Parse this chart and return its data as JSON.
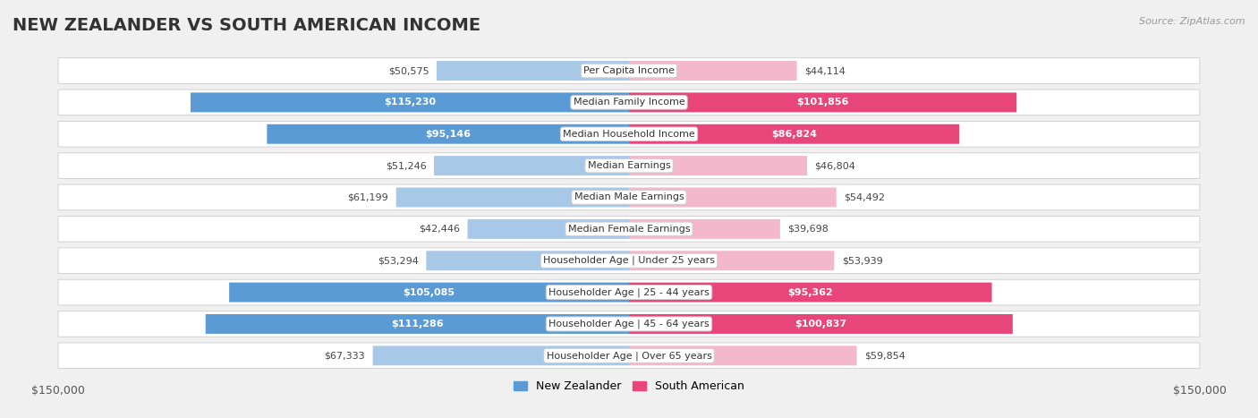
{
  "title": "NEW ZEALANDER VS SOUTH AMERICAN INCOME",
  "source": "Source: ZipAtlas.com",
  "max_val": 150000,
  "categories": [
    "Per Capita Income",
    "Median Family Income",
    "Median Household Income",
    "Median Earnings",
    "Median Male Earnings",
    "Median Female Earnings",
    "Householder Age | Under 25 years",
    "Householder Age | 25 - 44 years",
    "Householder Age | 45 - 64 years",
    "Householder Age | Over 65 years"
  ],
  "nz_values": [
    50575,
    115230,
    95146,
    51246,
    61199,
    42446,
    53294,
    105085,
    111286,
    67333
  ],
  "sa_values": [
    44114,
    101856,
    86824,
    46804,
    54492,
    39698,
    53939,
    95362,
    100837,
    59854
  ],
  "nz_labels": [
    "$50,575",
    "$115,230",
    "$95,146",
    "$51,246",
    "$61,199",
    "$42,446",
    "$53,294",
    "$105,085",
    "$111,286",
    "$67,333"
  ],
  "sa_labels": [
    "$44,114",
    "$101,856",
    "$86,824",
    "$46,804",
    "$54,492",
    "$39,698",
    "$53,939",
    "$95,362",
    "$100,837",
    "$59,854"
  ],
  "nz_color_light": "#a8c8e8",
  "nz_color_dark": "#5b9bd5",
  "sa_color_light": "#f4b8cc",
  "sa_color_dark": "#e8457a",
  "nz_text_threshold": 75000,
  "sa_text_threshold": 75000,
  "bg_color": "#f0f0f0",
  "row_bg": "#ffffff",
  "title_fontsize": 14,
  "label_fontsize": 8,
  "value_fontsize": 8,
  "legend_fontsize": 9,
  "axis_label_fontsize": 9
}
